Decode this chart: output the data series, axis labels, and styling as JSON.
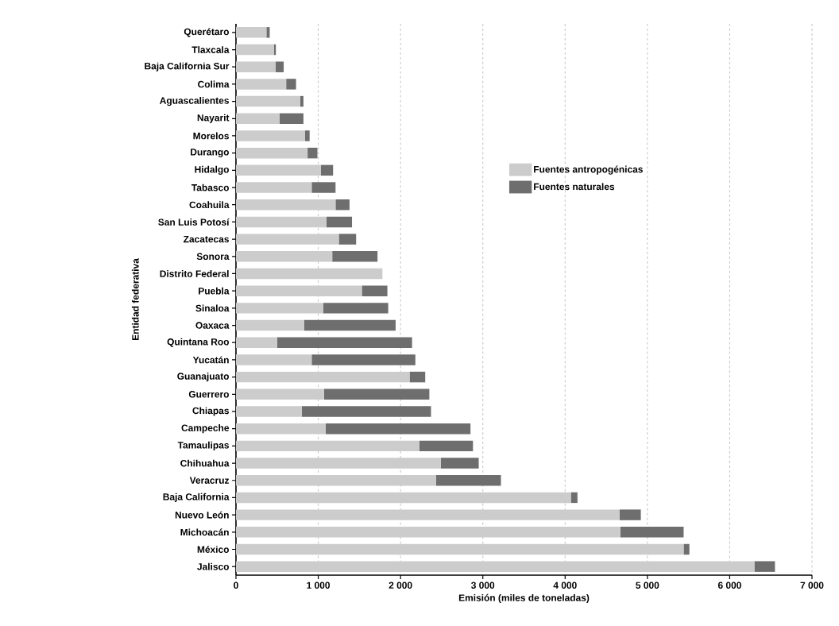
{
  "chart_data": {
    "type": "bar",
    "orientation": "horizontal",
    "stacked": true,
    "xlabel": "Emisión (miles de toneladas)",
    "ylabel": "Entidad federativa",
    "categories": [
      "Querétaro",
      "Tlaxcala",
      "Baja California Sur",
      "Colima",
      "Aguascalientes",
      "Nayarit",
      "Morelos",
      "Durango",
      "Hidalgo",
      "Tabasco",
      "Coahuila",
      "San Luis Potosí",
      "Zacatecas",
      "Sonora",
      "Distrito Federal",
      "Puebla",
      "Sinaloa",
      "Oaxaca",
      "Quintana Roo",
      "Yucatán",
      "Guanajuato",
      "Guerrero",
      "Chiapas",
      "Campeche",
      "Tamaulipas",
      "Chihuahua",
      "Veracruz",
      "Baja California",
      "Nuevo León",
      "Michoacán",
      "México",
      "Jalisco"
    ],
    "series": [
      {
        "name": "Fuentes antropogénicas",
        "color": "#cccccc",
        "values": [
          370,
          460,
          480,
          610,
          780,
          530,
          840,
          870,
          1030,
          920,
          1210,
          1100,
          1250,
          1170,
          1780,
          1530,
          1060,
          830,
          500,
          920,
          2110,
          1070,
          800,
          1090,
          2230,
          2490,
          2430,
          4070,
          4660,
          4670,
          5440,
          6300
        ]
      },
      {
        "name": "Fuentes naturales",
        "color": "#6e6e6e",
        "values": [
          40,
          25,
          100,
          120,
          40,
          290,
          55,
          120,
          150,
          290,
          170,
          310,
          210,
          550,
          0,
          310,
          790,
          1110,
          1640,
          1260,
          190,
          1280,
          1570,
          1760,
          650,
          460,
          790,
          80,
          260,
          770,
          70,
          250
        ]
      }
    ],
    "xlim": [
      0,
      7000
    ],
    "xticks": [
      0,
      {
        "value": 1000,
        "label": "1 000"
      },
      {
        "value": 2000,
        "label": "2 000"
      },
      {
        "value": 3000,
        "label": "3 000"
      },
      {
        "value": 4000,
        "label": "4 000"
      },
      {
        "value": 5000,
        "label": "5 000"
      },
      {
        "value": 6000,
        "label": "6 000"
      },
      {
        "value": 7000,
        "label": "7 000"
      }
    ],
    "grid": "x",
    "legend": "right"
  }
}
